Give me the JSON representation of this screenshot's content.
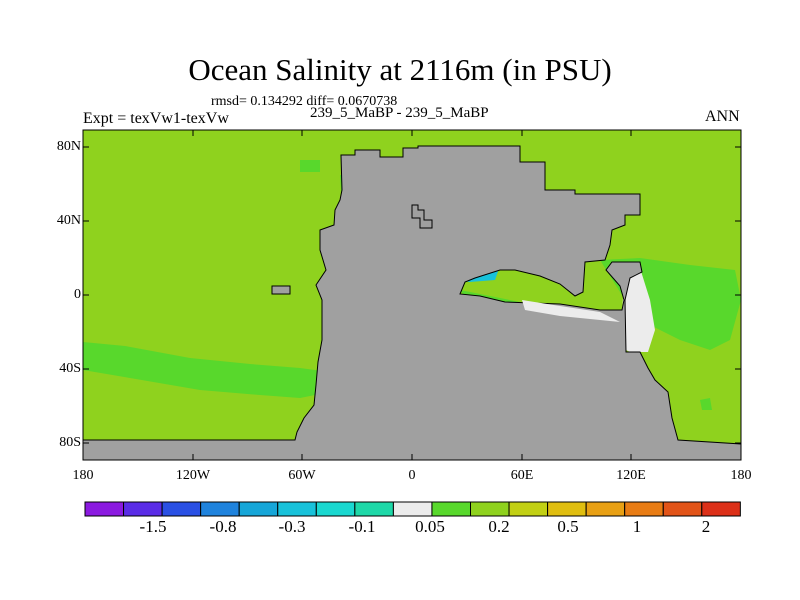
{
  "title": "Ocean Salinity at 2116m (in PSU)",
  "stats": "rmsd= 0.134292 diff= 0.0670738",
  "left_label": "Expt = texVw1-texVw",
  "center_label": "239_5_MaBP - 239_5_MaBP",
  "right_label": "ANN",
  "lat_ticks": [
    "80N",
    "40N",
    "0",
    "40S",
    "80S"
  ],
  "lon_ticks": [
    "180",
    "120W",
    "60W",
    "0",
    "60E",
    "120E",
    "180"
  ],
  "colorbar": {
    "colors": [
      "#8b1ae0",
      "#5a2ce6",
      "#2a50e4",
      "#1f83dd",
      "#16a6d8",
      "#18c2da",
      "#1ad8d0",
      "#1ed8a8",
      "#ececec",
      "#58d82c",
      "#8fd21e",
      "#c2d014",
      "#e0be10",
      "#e8a014",
      "#e87c14",
      "#e25418",
      "#dc3018"
    ],
    "labels": [
      "-1.5",
      "-0.8",
      "-0.3",
      "-0.1",
      "0.05",
      "0.2",
      "0.5",
      "1",
      "2"
    ]
  },
  "map_colors": {
    "land": "#a0a0a0",
    "background": "#8fd21e",
    "light_green": "#58d82c",
    "teal": "#1ed8a8",
    "cyan": "#18c2da",
    "blue": "#16a6d8",
    "white": "#ececec"
  }
}
